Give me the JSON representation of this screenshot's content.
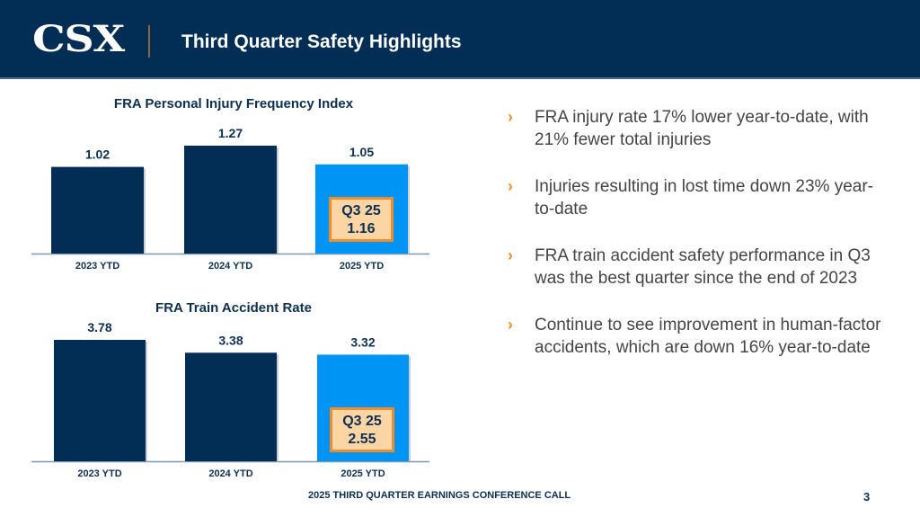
{
  "header": {
    "logo_text": "CSX",
    "title": "Third Quarter Safety Highlights"
  },
  "colors": {
    "navy": "#022d54",
    "bar_highlight": "#0094f5",
    "callout_fill": "#fcd5a5",
    "callout_border": "#f28c28",
    "bullet_accent": "#f28c28"
  },
  "chart_data": [
    {
      "type": "bar",
      "title": "FRA Personal Injury Frequency Index",
      "categories": [
        "2023 YTD",
        "2024 YTD",
        "2025 YTD"
      ],
      "values": [
        1.02,
        1.27,
        1.05
      ],
      "value_labels": [
        "1.02",
        "1.27",
        "1.05"
      ],
      "highlight_index": 2,
      "callout": {
        "line1": "Q3 25",
        "line2": "1.16"
      },
      "xlabel": "",
      "ylabel": "",
      "grid": false
    },
    {
      "type": "bar",
      "title": "FRA Train Accident Rate",
      "categories": [
        "2023 YTD",
        "2024 YTD",
        "2025 YTD"
      ],
      "values": [
        3.78,
        3.38,
        3.32
      ],
      "value_labels": [
        "3.78",
        "3.38",
        "3.32"
      ],
      "highlight_index": 2,
      "callout": {
        "line1": "Q3 25",
        "line2": "2.55"
      },
      "xlabel": "",
      "ylabel": "",
      "grid": false
    }
  ],
  "bullets": [
    {
      "icon": "chevron-right-icon",
      "text": "FRA injury rate 17% lower year-to-date, with 21% fewer total injuries"
    },
    {
      "icon": "chevron-right-icon",
      "text": "Injuries resulting in lost time down 23% year-to-date"
    },
    {
      "icon": "chevron-right-icon",
      "text": "FRA train accident safety performance in Q3 was the best quarter since the end of 2023"
    },
    {
      "icon": "chevron-right-icon",
      "text": "Continue to see improvement in human-factor accidents, which are down 16% year-to-date"
    }
  ],
  "footer": {
    "text": "2025 THIRD QUARTER EARNINGS CONFERENCE CALL",
    "page_number": "3"
  }
}
